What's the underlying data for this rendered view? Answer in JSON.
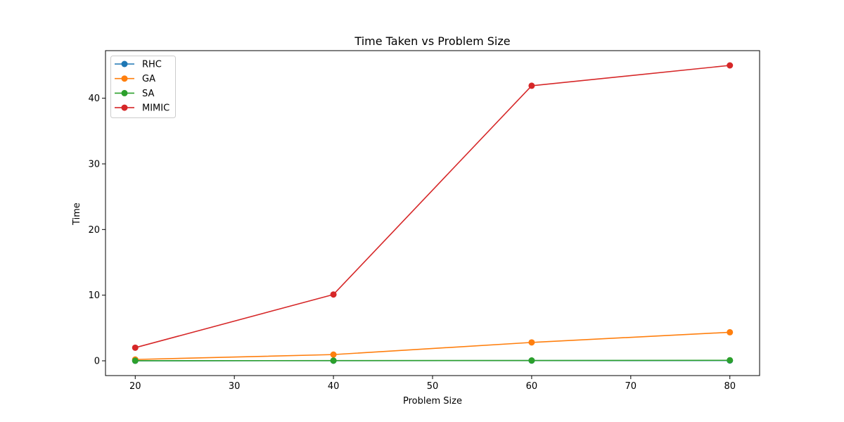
{
  "chart_data": {
    "type": "line",
    "title": "Time Taken vs Problem Size",
    "xlabel": "Problem Size",
    "ylabel": "Time",
    "x": [
      20,
      40,
      60,
      80
    ],
    "xlim": [
      17.0,
      83.0
    ],
    "ylim": [
      -2.25,
      47.25
    ],
    "xticks": [
      20,
      30,
      40,
      50,
      60,
      70,
      80
    ],
    "yticks": [
      0,
      10,
      20,
      30,
      40
    ],
    "grid": false,
    "legend": "upper left",
    "series": [
      {
        "name": "RHC",
        "color": "#1f77b4",
        "values": [
          0.01,
          0.02,
          0.03,
          0.04
        ]
      },
      {
        "name": "GA",
        "color": "#ff7f0e",
        "values": [
          0.2,
          0.95,
          2.8,
          4.35
        ]
      },
      {
        "name": "SA",
        "color": "#2ca02c",
        "values": [
          0.02,
          0.03,
          0.05,
          0.08
        ]
      },
      {
        "name": "MIMIC",
        "color": "#d62728",
        "values": [
          2.0,
          10.1,
          41.9,
          45.0
        ]
      }
    ]
  }
}
